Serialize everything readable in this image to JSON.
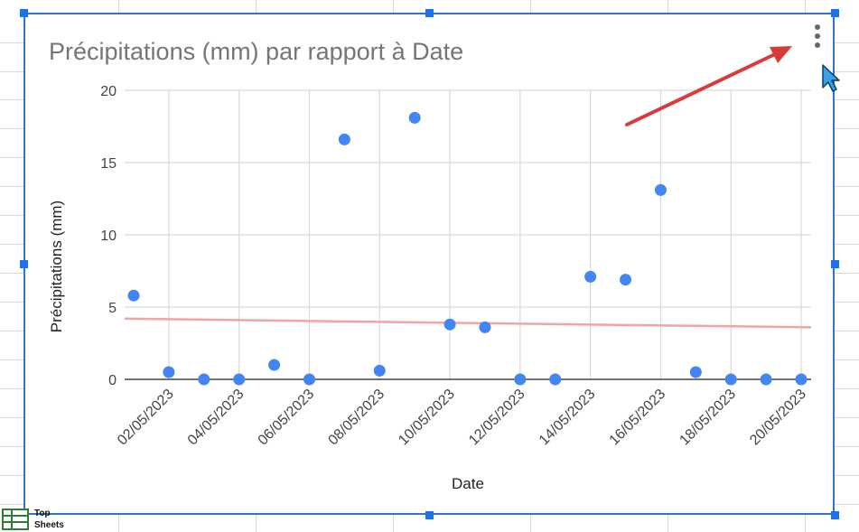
{
  "chart_data": {
    "type": "scatter",
    "title": "Précipitations (mm) par rapport à Date",
    "xlabel": "Date",
    "ylabel": "Précipitations (mm)",
    "ylim": [
      0,
      20
    ],
    "yticks": [
      "0",
      "5",
      "10",
      "15",
      "20"
    ],
    "xticks": [
      "02/05/2023",
      "04/05/2023",
      "06/05/2023",
      "08/05/2023",
      "10/05/2023",
      "12/05/2023",
      "14/05/2023",
      "16/05/2023",
      "18/05/2023",
      "20/05/2023"
    ],
    "x": [
      "01/05/2023",
      "02/05/2023",
      "03/05/2023",
      "04/05/2023",
      "05/05/2023",
      "06/05/2023",
      "07/05/2023",
      "08/05/2023",
      "09/05/2023",
      "10/05/2023",
      "11/05/2023",
      "12/05/2023",
      "13/05/2023",
      "14/05/2023",
      "15/05/2023",
      "16/05/2023",
      "17/05/2023",
      "18/05/2023",
      "19/05/2023",
      "20/05/2023"
    ],
    "y": [
      5.8,
      0.5,
      0,
      0,
      1.0,
      0,
      16.6,
      0.6,
      18.1,
      3.8,
      3.6,
      0,
      0,
      7.1,
      6.9,
      13.1,
      0.5,
      0,
      0,
      0
    ],
    "trendline": {
      "start": 4.2,
      "end": 3.6
    },
    "grid": true,
    "colors": {
      "points": "#4285f4",
      "trendline": "#f4a3a3",
      "annotation_arrow": "#d93b3b"
    }
  },
  "toolbar": {
    "menu_icon": "kebab-menu-icon"
  },
  "watermark": {
    "line1": "Top",
    "line2": "Sheets"
  },
  "colors": {
    "selection": "#1a73e8",
    "gridlines": "#d9d9d9"
  }
}
